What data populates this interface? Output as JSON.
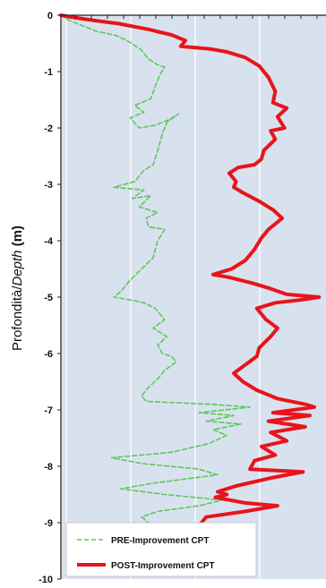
{
  "chart_data": {
    "type": "line",
    "title": "",
    "ylabel": {
      "prefix": "Profondità/",
      "italic": "Depth",
      "unit": " (m)"
    },
    "ylim": [
      -10,
      0
    ],
    "yticks": [
      "0",
      "-1",
      "-2",
      "-3",
      "-4",
      "-5",
      "-6",
      "-7",
      "-8",
      "-9",
      "-10"
    ],
    "x_tick_labels": [],
    "grid": true,
    "legend_position": "bottom-left",
    "colors": {
      "plot_background": "#d8e2ee",
      "grid": "#ffffff",
      "pre": "#5cc85c",
      "post": "#e8141b"
    },
    "series": [
      {
        "name": "PRE-Improvement CPT",
        "style": "dashed",
        "points": [
          [
            0.0,
            0.0
          ],
          [
            0.3,
            -0.08
          ],
          [
            0.9,
            -0.18
          ],
          [
            1.5,
            -0.28
          ],
          [
            2.4,
            -0.36
          ],
          [
            3.0,
            -0.48
          ],
          [
            3.5,
            -0.62
          ],
          [
            3.8,
            -0.78
          ],
          [
            4.2,
            -0.88
          ],
          [
            4.5,
            -0.92
          ],
          [
            4.3,
            -1.05
          ],
          [
            4.1,
            -1.25
          ],
          [
            3.9,
            -1.48
          ],
          [
            3.2,
            -1.6
          ],
          [
            3.6,
            -1.72
          ],
          [
            3.0,
            -1.82
          ],
          [
            3.4,
            -2.0
          ],
          [
            4.1,
            -1.95
          ],
          [
            4.7,
            -1.85
          ],
          [
            5.1,
            -1.75
          ],
          [
            4.6,
            -1.9
          ],
          [
            4.4,
            -2.1
          ],
          [
            4.2,
            -2.4
          ],
          [
            4.0,
            -2.65
          ],
          [
            3.6,
            -2.75
          ],
          [
            3.2,
            -2.95
          ],
          [
            2.3,
            -3.05
          ],
          [
            3.6,
            -3.1
          ],
          [
            3.1,
            -3.25
          ],
          [
            3.9,
            -3.2
          ],
          [
            3.4,
            -3.4
          ],
          [
            4.2,
            -3.5
          ],
          [
            3.7,
            -3.6
          ],
          [
            3.8,
            -3.75
          ],
          [
            4.5,
            -3.8
          ],
          [
            4.2,
            -4.0
          ],
          [
            4.0,
            -4.3
          ],
          [
            3.5,
            -4.5
          ],
          [
            3.0,
            -4.7
          ],
          [
            2.6,
            -4.9
          ],
          [
            2.3,
            -5.0
          ],
          [
            3.0,
            -5.05
          ],
          [
            3.6,
            -5.1
          ],
          [
            4.1,
            -5.2
          ],
          [
            4.5,
            -5.4
          ],
          [
            4.0,
            -5.55
          ],
          [
            4.6,
            -5.7
          ],
          [
            4.2,
            -5.85
          ],
          [
            4.4,
            -6.0
          ],
          [
            4.8,
            -6.05
          ],
          [
            5.0,
            -6.15
          ],
          [
            4.5,
            -6.3
          ],
          [
            4.2,
            -6.45
          ],
          [
            3.8,
            -6.6
          ],
          [
            3.5,
            -6.75
          ],
          [
            3.7,
            -6.85
          ],
          [
            6.5,
            -6.9
          ],
          [
            8.2,
            -6.95
          ],
          [
            6.0,
            -7.05
          ],
          [
            7.5,
            -7.1
          ],
          [
            6.3,
            -7.2
          ],
          [
            7.8,
            -7.25
          ],
          [
            6.6,
            -7.35
          ],
          [
            7.2,
            -7.45
          ],
          [
            6.4,
            -7.6
          ],
          [
            4.8,
            -7.75
          ],
          [
            2.2,
            -7.85
          ],
          [
            3.5,
            -7.95
          ],
          [
            6.0,
            -8.05
          ],
          [
            6.8,
            -8.15
          ],
          [
            4.0,
            -8.3
          ],
          [
            2.6,
            -8.4
          ],
          [
            4.5,
            -8.5
          ],
          [
            7.0,
            -8.6
          ],
          [
            6.0,
            -8.7
          ],
          [
            4.2,
            -8.8
          ],
          [
            3.5,
            -8.9
          ],
          [
            3.8,
            -9.0
          ]
        ]
      },
      {
        "name": "POST-Improvement CPT",
        "style": "solid",
        "points": [
          [
            0.0,
            0.0
          ],
          [
            0.4,
            -0.03
          ],
          [
            1.2,
            -0.08
          ],
          [
            2.5,
            -0.15
          ],
          [
            3.8,
            -0.25
          ],
          [
            4.8,
            -0.35
          ],
          [
            5.4,
            -0.45
          ],
          [
            5.2,
            -0.55
          ],
          [
            6.5,
            -0.6
          ],
          [
            7.2,
            -0.65
          ],
          [
            8.0,
            -0.75
          ],
          [
            8.6,
            -0.9
          ],
          [
            9.0,
            -1.1
          ],
          [
            9.3,
            -1.35
          ],
          [
            9.2,
            -1.55
          ],
          [
            9.8,
            -1.65
          ],
          [
            9.4,
            -1.8
          ],
          [
            9.7,
            -2.0
          ],
          [
            9.1,
            -2.05
          ],
          [
            9.3,
            -2.2
          ],
          [
            8.8,
            -2.4
          ],
          [
            8.7,
            -2.55
          ],
          [
            8.4,
            -2.65
          ],
          [
            7.7,
            -2.7
          ],
          [
            7.3,
            -2.8
          ],
          [
            7.6,
            -2.95
          ],
          [
            7.5,
            -3.05
          ],
          [
            7.9,
            -3.15
          ],
          [
            8.6,
            -3.3
          ],
          [
            9.2,
            -3.45
          ],
          [
            9.6,
            -3.6
          ],
          [
            9.0,
            -3.8
          ],
          [
            8.7,
            -3.95
          ],
          [
            8.4,
            -4.15
          ],
          [
            8.0,
            -4.35
          ],
          [
            7.4,
            -4.5
          ],
          [
            6.6,
            -4.6
          ],
          [
            7.3,
            -4.65
          ],
          [
            8.3,
            -4.75
          ],
          [
            9.1,
            -4.85
          ],
          [
            9.8,
            -4.95
          ],
          [
            11.2,
            -5.0
          ],
          [
            10.4,
            -5.05
          ],
          [
            9.3,
            -5.1
          ],
          [
            8.5,
            -5.2
          ],
          [
            8.9,
            -5.4
          ],
          [
            9.4,
            -5.55
          ],
          [
            9.1,
            -5.7
          ],
          [
            8.6,
            -5.9
          ],
          [
            8.5,
            -6.05
          ],
          [
            8.0,
            -6.2
          ],
          [
            7.5,
            -6.35
          ],
          [
            7.9,
            -6.5
          ],
          [
            8.5,
            -6.65
          ],
          [
            9.4,
            -6.8
          ],
          [
            10.6,
            -6.9
          ],
          [
            11.0,
            -6.95
          ],
          [
            9.2,
            -7.05
          ],
          [
            10.8,
            -7.1
          ],
          [
            9.0,
            -7.2
          ],
          [
            10.6,
            -7.3
          ],
          [
            9.1,
            -7.4
          ],
          [
            9.8,
            -7.55
          ],
          [
            8.7,
            -7.65
          ],
          [
            9.3,
            -7.8
          ],
          [
            8.4,
            -7.9
          ],
          [
            8.2,
            -8.05
          ],
          [
            10.5,
            -8.1
          ],
          [
            9.2,
            -8.2
          ],
          [
            7.6,
            -8.35
          ],
          [
            6.8,
            -8.45
          ],
          [
            7.2,
            -8.5
          ],
          [
            6.7,
            -8.55
          ],
          [
            8.0,
            -8.65
          ],
          [
            9.4,
            -8.7
          ],
          [
            8.0,
            -8.8
          ],
          [
            6.3,
            -8.9
          ],
          [
            6.1,
            -9.0
          ]
        ]
      }
    ]
  }
}
